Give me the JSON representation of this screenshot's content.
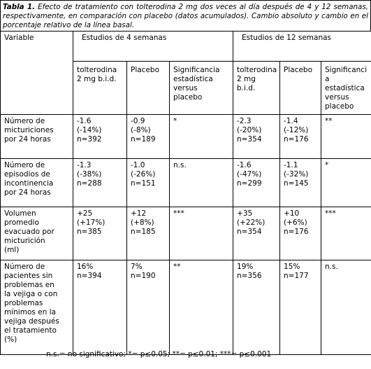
{
  "caption": {
    "label": "Tabla 1.",
    "text": "Efecto de tratamiento con tolterodina 2 mg dos veces al día después de 4 y 12 semanas, respectivamente, en comparación con placebo (datos acumulados). Cambio absoluto y cambio en el porcentaje relativo de la línea basal."
  },
  "header": [
    "Variable",
    "Estudios de 4 semanas",
    "Estudios de 12 semanas"
  ],
  "subheader": [
    [
      "tolterodina",
      "2 mg b.i.d."
    ],
    [
      "Placebo"
    ],
    [
      "Significancia",
      "estadística",
      "versus",
      "placebo"
    ],
    [
      "tolterodina",
      "2 mg",
      "b.i.d."
    ],
    [
      "Placebo"
    ],
    [
      "Significanci",
      "a",
      "estadística",
      "versus",
      "placebo"
    ]
  ],
  "rows": [
    [
      [
        "Número de",
        "micturiciones",
        "por 24 horas"
      ],
      [
        "-1.6",
        "(-14%)",
        "n=392"
      ],
      [
        "-0.9",
        "(-8%)",
        "n=189"
      ],
      [
        "*"
      ],
      [
        "-2.3",
        "(-20%)",
        "n=354"
      ],
      [
        "-1.4",
        "(-12%)",
        "n=176"
      ],
      [
        "**"
      ]
    ],
    [
      [
        "Número de",
        "episodios de",
        "incontinencia",
        "por 24 horas"
      ],
      [
        "-1.3",
        "(-38%)",
        "n=288"
      ],
      [
        "-1.0",
        "(-26%)",
        "n=151"
      ],
      [
        "n.s."
      ],
      [
        "-1.6",
        "(-47%)",
        "n=299"
      ],
      [
        "-1.1",
        "(-32%)",
        "n=145"
      ],
      [
        "*"
      ]
    ],
    [
      [
        "Volumen",
        "promedio",
        "evacuado por",
        "micturición",
        "(ml)"
      ],
      [
        "+25",
        "(+17%)",
        "n=385"
      ],
      [
        "+12",
        "(+8%)",
        "n=185"
      ],
      [
        "***"
      ],
      [
        "+35",
        "(+22%)",
        "n=354"
      ],
      [
        "+10",
        "(+6%)",
        "n=176"
      ],
      [
        "***"
      ]
    ],
    [
      [
        "Número de",
        "pacientes sin",
        "problemas en",
        "la vejiga o con",
        "problemas",
        "mínimos en la",
        "vejiga después",
        "el tratamiento",
        "(%)"
      ],
      [
        "16%",
        "n=394"
      ],
      [
        "7%",
        "n=190"
      ],
      [
        "**"
      ],
      [
        "19%",
        "n=356"
      ],
      [
        "15%",
        "n=177"
      ],
      [
        "n.s."
      ]
    ]
  ],
  "footnote": "n.s.= no significativo; *= p≤0.05; **= p≤0.01; ***= p≤0.001"
}
